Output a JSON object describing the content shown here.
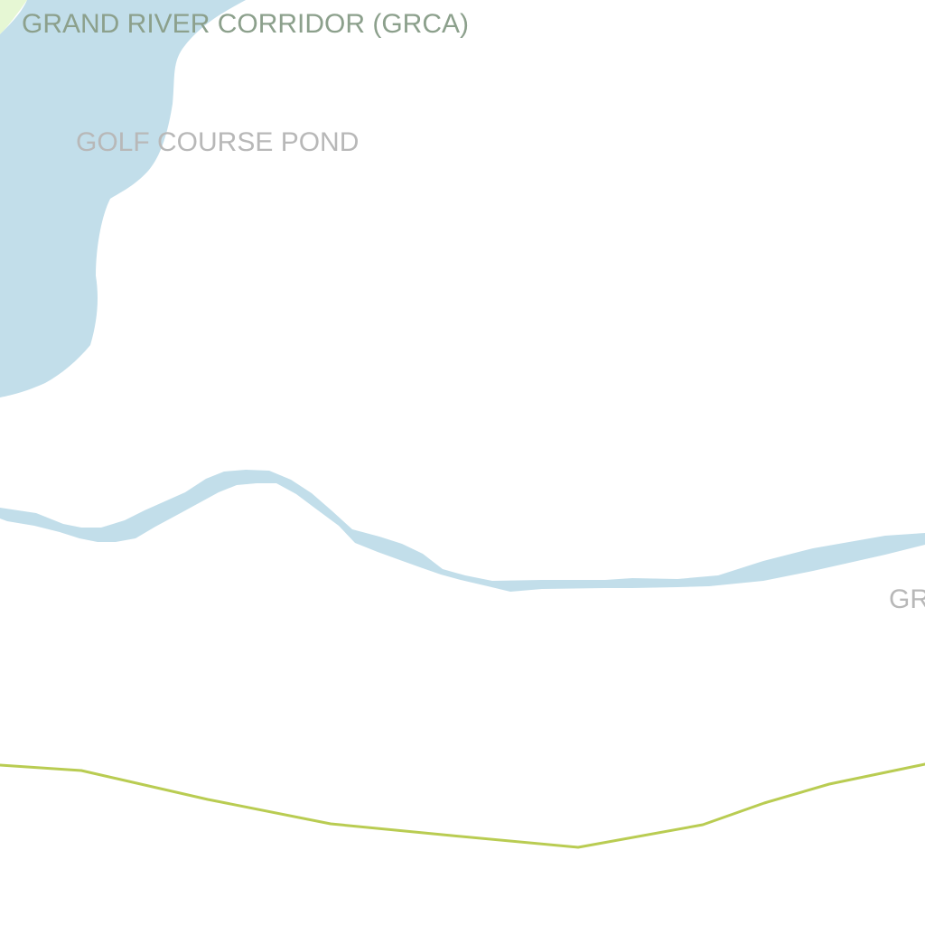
{
  "labels": {
    "conservation_area": "GRAND RIVER CORRIDOR (GRCA)",
    "pond": "GOLF COURSE POND",
    "partial": "GR"
  },
  "colors": {
    "background": "#ffffff",
    "water": "#c2deea",
    "park": "#e6f7d4",
    "road": "#b9cc52",
    "area_label": "#8ca08c",
    "water_label": "#b8b8b8"
  }
}
